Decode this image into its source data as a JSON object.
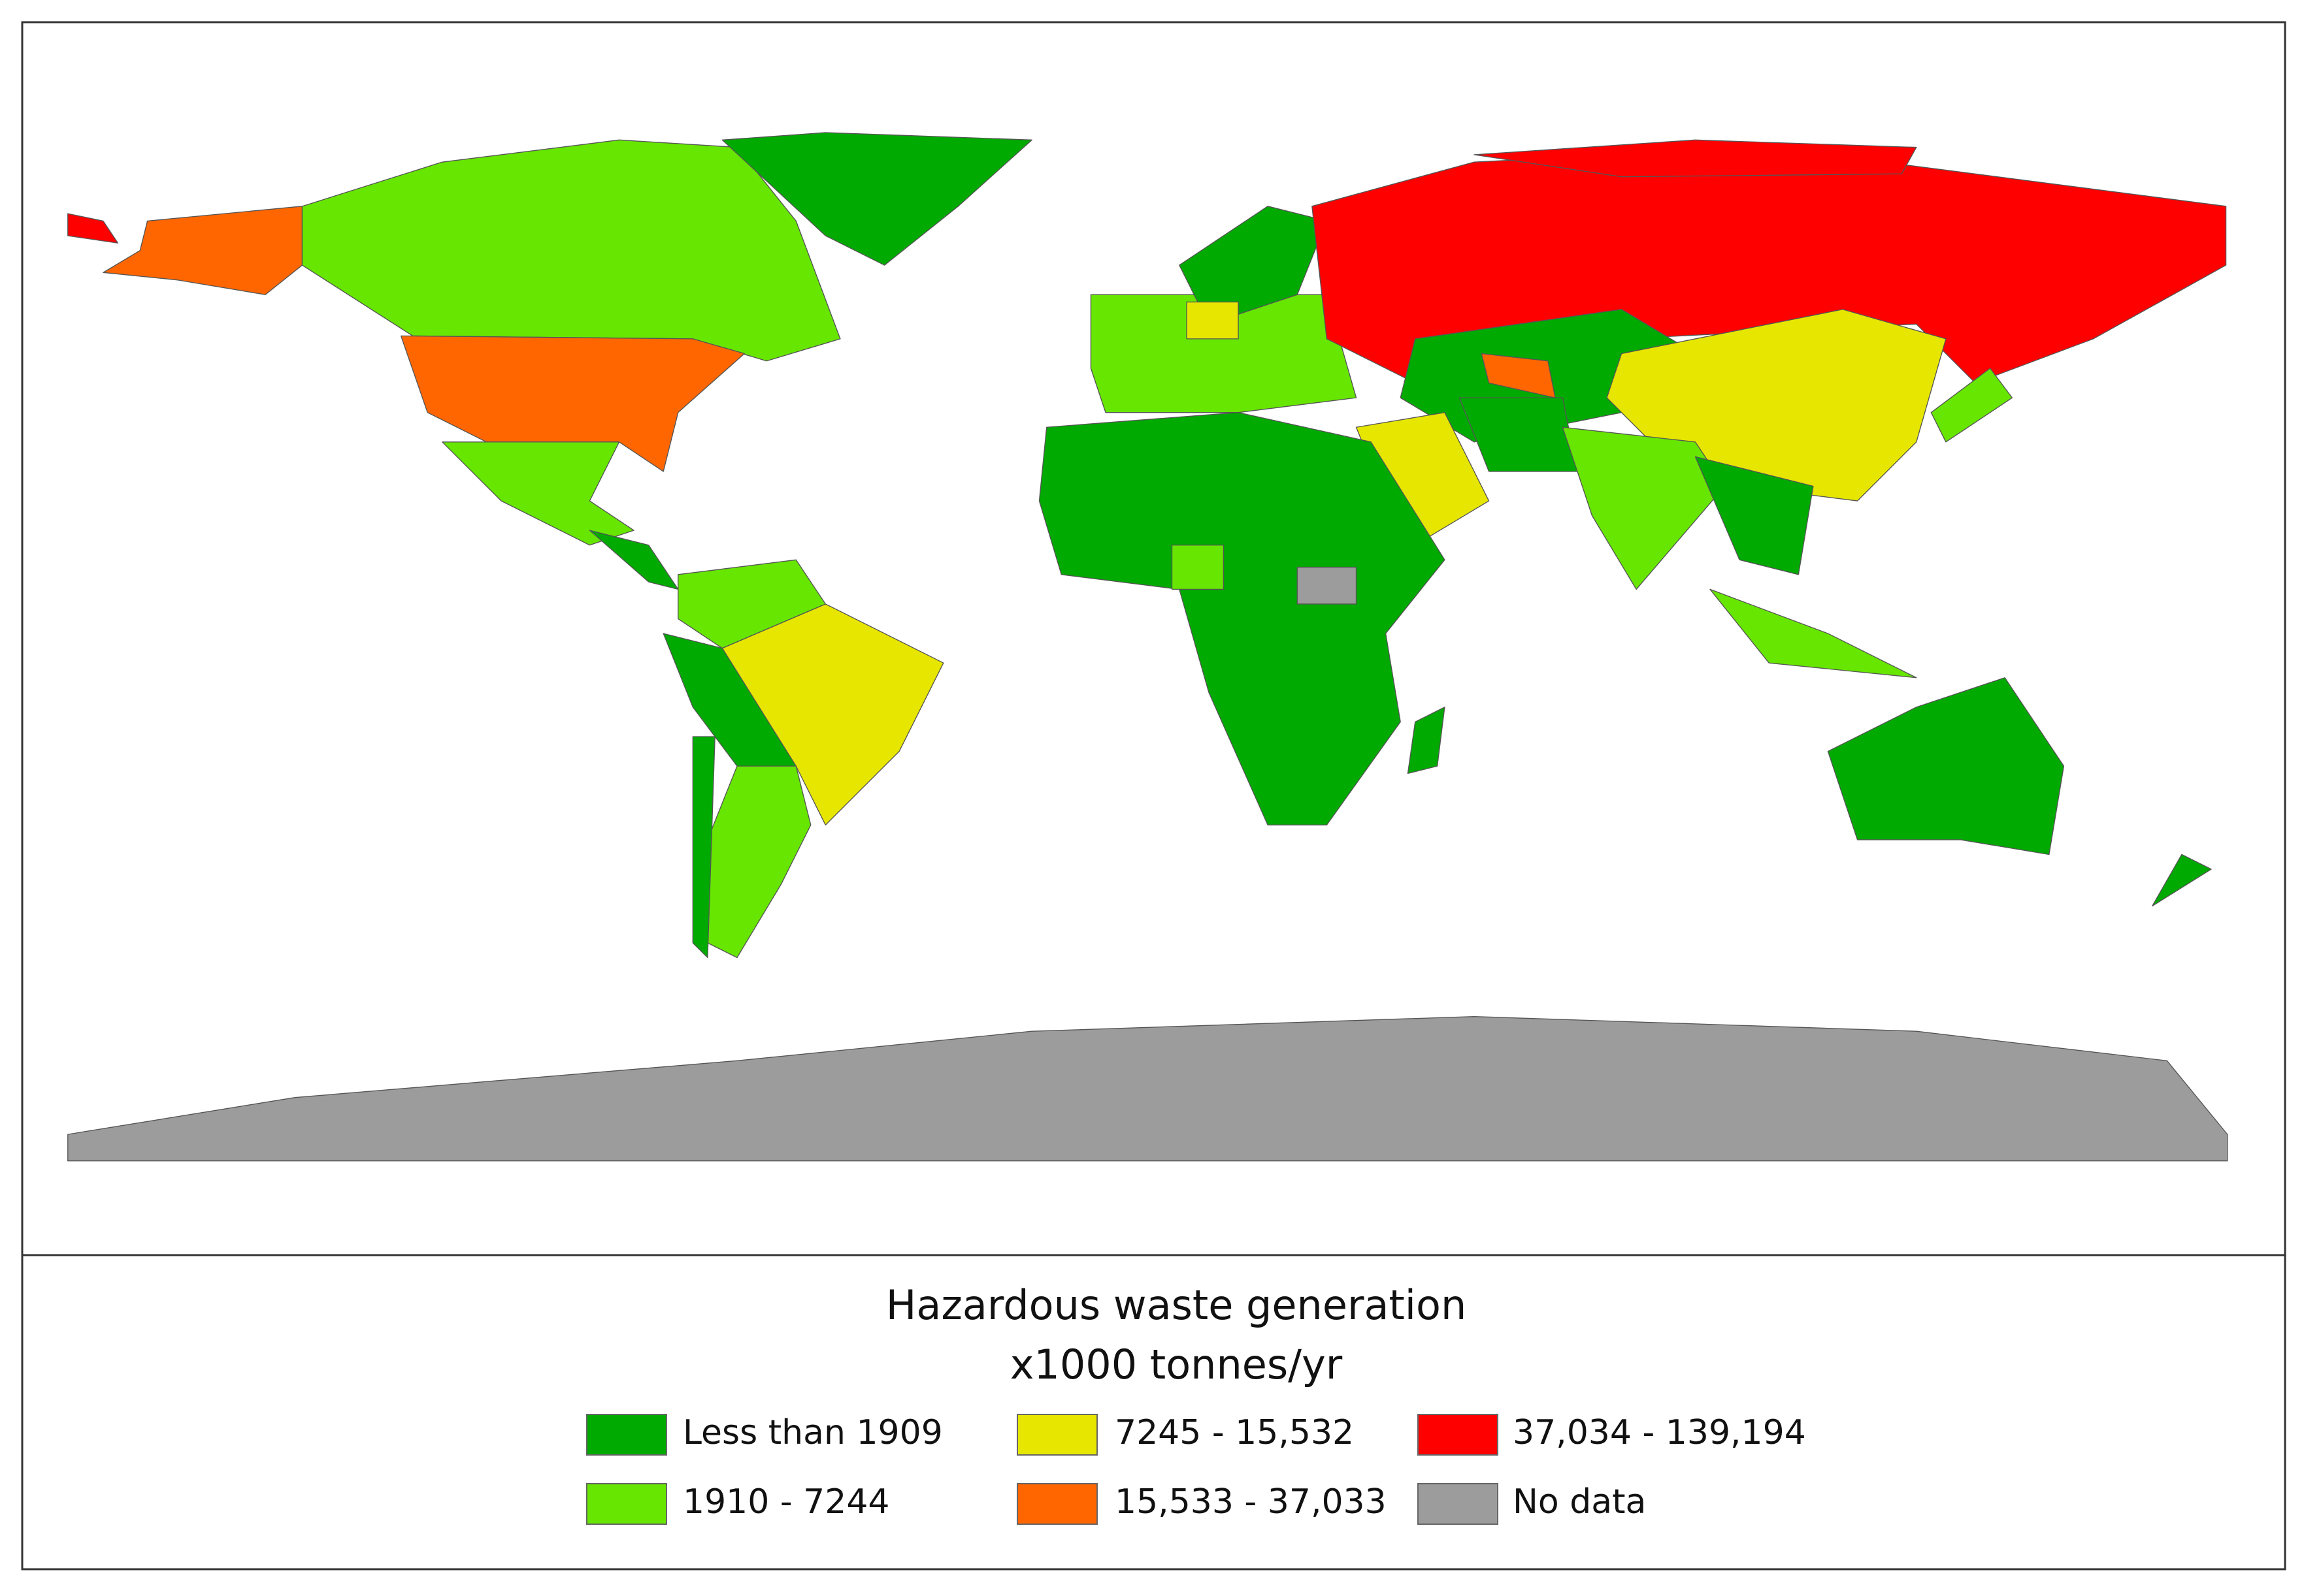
{
  "legend": {
    "title": "Hazardous waste generation",
    "subtitle": "x1000 tonnes/yr",
    "items": [
      {
        "label": "Less than 1909",
        "color": "#00aa00"
      },
      {
        "label": "1910 - 7244",
        "color": "#66e600"
      },
      {
        "label": "7245 - 15,532",
        "color": "#e6e600"
      },
      {
        "label": "15,533 - 37,033",
        "color": "#ff6600"
      },
      {
        "label": "37,034 - 139,194",
        "color": "#ff0000"
      },
      {
        "label": "No data",
        "color": "#9c9c9c"
      }
    ]
  }
}
